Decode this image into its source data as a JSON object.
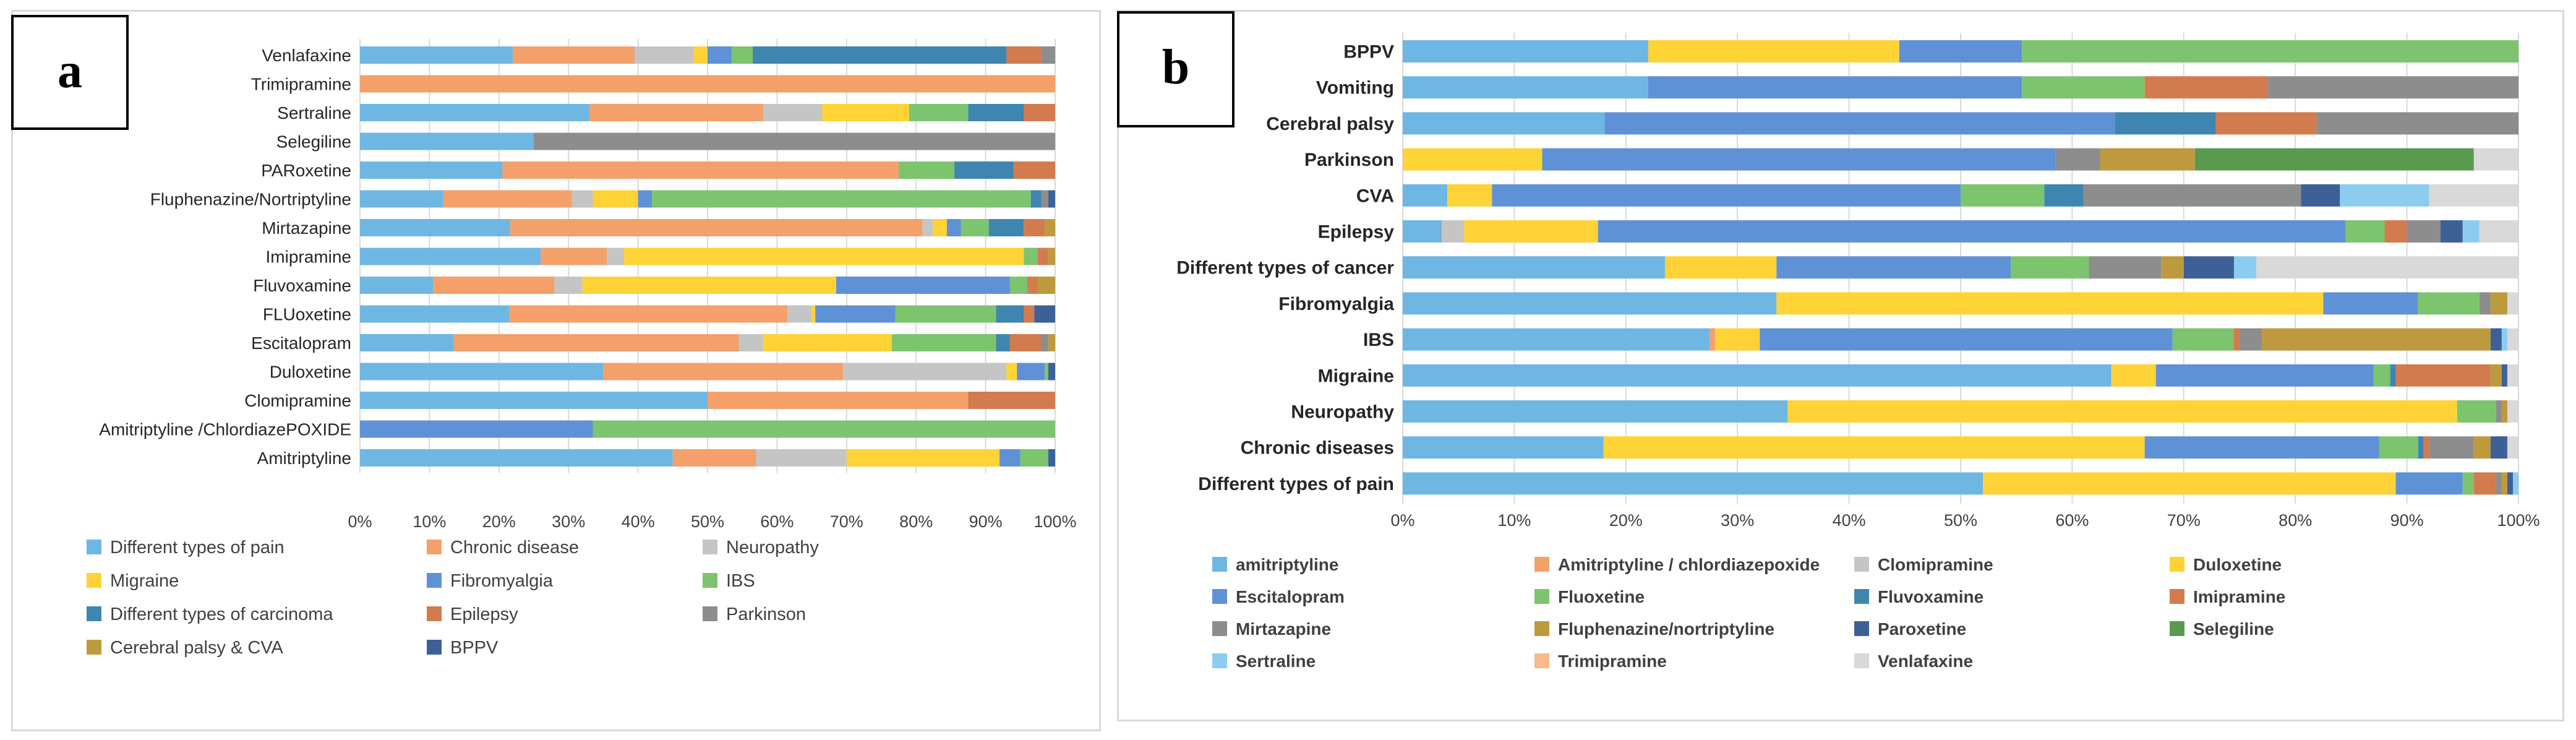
{
  "panels": {
    "a_label": "a",
    "b_label": "b"
  },
  "chart_data": [
    {
      "type": "bar",
      "orientation": "horizontal",
      "stacked": "percent",
      "panel": "a",
      "title": "",
      "xlabel": "",
      "ylabel": "",
      "xlim": [
        0,
        100
      ],
      "xticks": [
        "0%",
        "10%",
        "20%",
        "30%",
        "40%",
        "50%",
        "60%",
        "70%",
        "80%",
        "90%",
        "100%"
      ],
      "categories": [
        "Venlafaxine",
        "Trimipramine",
        "Sertraline",
        "Selegiline",
        "PARoxetine",
        "Fluphenazine/Nortriptyline",
        "Mirtazapine",
        "Imipramine",
        "Fluvoxamine",
        "FLUoxetine",
        "Escitalopram",
        "Duloxetine",
        "Clomipramine",
        "Amitriptyline /ChlordiazePOXIDE",
        "Amitriptyline"
      ],
      "legend_position": "bottom",
      "series": [
        {
          "name": "Different types of pain",
          "color": "#6fb7e3",
          "values": [
            22,
            0,
            33,
            25,
            20.5,
            12,
            21.5,
            26,
            10.5,
            21.5,
            13.5,
            35,
            50,
            0,
            45
          ]
        },
        {
          "name": "Chronic disease",
          "color": "#f4a06a",
          "values": [
            17.5,
            100,
            25,
            0,
            57,
            18.5,
            59,
            9.5,
            17.5,
            40,
            41,
            34.5,
            37.5,
            0,
            12
          ]
        },
        {
          "name": "Neuropathy",
          "color": "#c5c5c5",
          "values": [
            8.5,
            0,
            8.5,
            0,
            0,
            3,
            1.5,
            2.5,
            4,
            3.5,
            3.5,
            23.5,
            0,
            0,
            13
          ]
        },
        {
          "name": "Migraine",
          "color": "#ffd236",
          "values": [
            2,
            0,
            12.5,
            0,
            0,
            6.5,
            2,
            57.5,
            36.5,
            0.5,
            18.5,
            1.5,
            0,
            0,
            22
          ]
        },
        {
          "name": "Fibromyalgia",
          "color": "#5f91d6",
          "values": [
            3.5,
            0,
            0,
            0,
            0,
            2,
            2,
            0,
            25,
            11.5,
            0,
            4,
            0,
            33.5,
            3
          ]
        },
        {
          "name": "IBS",
          "color": "#7dc46f",
          "values": [
            3,
            0,
            8.5,
            0,
            8,
            54.5,
            4,
            2,
            2.5,
            14.5,
            15,
            0.5,
            0,
            66.5,
            4
          ]
        },
        {
          "name": "Different types of carcinoma",
          "color": "#3e86b0",
          "values": [
            36.5,
            0,
            8,
            0,
            8.5,
            1.5,
            5,
            0,
            0,
            4,
            2,
            0,
            0,
            0,
            0
          ]
        },
        {
          "name": "Epilepsy",
          "color": "#d27b4e",
          "values": [
            5,
            0,
            4.5,
            0,
            6,
            0,
            3,
            1.5,
            1.5,
            1.5,
            4.5,
            0,
            12.5,
            0,
            0
          ]
        },
        {
          "name": "Parkinson",
          "color": "#8d8d8d",
          "values": [
            2,
            0,
            0,
            75,
            0,
            1,
            0,
            0,
            0,
            0,
            1,
            0,
            0,
            0,
            0
          ]
        },
        {
          "name": "Cerebral palsy & CVA",
          "color": "#be9a3f",
          "values": [
            0,
            0,
            0,
            0,
            0,
            0,
            1.5,
            1,
            2.5,
            0,
            1,
            0,
            0,
            0,
            0
          ]
        },
        {
          "name": "BPPV",
          "color": "#3d6197",
          "values": [
            0,
            0,
            0,
            0,
            0,
            1,
            0,
            0,
            0,
            3,
            0,
            1,
            0,
            0,
            1
          ]
        }
      ]
    },
    {
      "type": "bar",
      "orientation": "horizontal",
      "stacked": "percent",
      "panel": "b",
      "title": "",
      "xlabel": "",
      "ylabel": "",
      "xlim": [
        0,
        100
      ],
      "xticks": [
        "0%",
        "10%",
        "20%",
        "30%",
        "40%",
        "50%",
        "60%",
        "70%",
        "80%",
        "90%",
        "100%"
      ],
      "categories": [
        "BPPV",
        "Vomiting",
        "Cerebral palsy",
        "Parkinson",
        "CVA",
        "Epilepsy",
        "Different types of cancer",
        "Fibromyalgia",
        "IBS",
        "Migraine",
        "Neuropathy",
        "Chronic diseases",
        "Different types of pain"
      ],
      "legend_position": "bottom",
      "series": [
        {
          "name": "amitriptyline",
          "color": "#6fb7e3",
          "values": [
            22,
            22,
            18,
            0,
            4,
            3.5,
            23.5,
            33.5,
            27.5,
            63.5,
            34.5,
            18,
            52
          ]
        },
        {
          "name": "Amitriptyline / chlordiazepoxide",
          "color": "#f4a06a",
          "values": [
            0,
            0,
            0,
            0,
            0,
            0,
            0,
            0,
            0.5,
            0,
            0,
            0,
            0
          ]
        },
        {
          "name": "Clomipramine",
          "color": "#c5c5c5",
          "values": [
            0,
            0,
            0,
            0,
            0,
            2,
            0,
            0,
            0,
            0,
            0,
            0,
            0
          ]
        },
        {
          "name": "Duloxetine",
          "color": "#ffd236",
          "values": [
            22.5,
            0,
            0,
            12.5,
            4,
            12,
            10,
            49,
            4,
            4,
            60,
            48.5,
            37
          ]
        },
        {
          "name": "Escitalopram",
          "color": "#5f91d6",
          "values": [
            11,
            33.5,
            45.5,
            46,
            42,
            67,
            21,
            8.5,
            37,
            19.5,
            0,
            21,
            6
          ]
        },
        {
          "name": "Fluoxetine",
          "color": "#7dc46f",
          "values": [
            44.5,
            11,
            0,
            0,
            7.5,
            3.5,
            7,
            5.5,
            5.5,
            1.5,
            3.5,
            3.5,
            1
          ]
        },
        {
          "name": "Fluvoxamine",
          "color": "#3e86b0",
          "values": [
            0,
            0,
            9,
            0,
            3.5,
            0,
            0,
            0,
            0,
            0.5,
            0,
            0.5,
            0
          ]
        },
        {
          "name": "Imipramine",
          "color": "#d27b4e",
          "values": [
            0,
            11,
            9,
            0,
            0,
            2,
            0,
            0,
            0.5,
            8.5,
            0,
            0.5,
            2
          ]
        },
        {
          "name": "Mirtazapine",
          "color": "#8d8d8d",
          "values": [
            0,
            22.5,
            18,
            4,
            19.5,
            3,
            6.5,
            1,
            2,
            0,
            0.5,
            4,
            0.5
          ]
        },
        {
          "name": "Fluphenazine/nortriptyline",
          "color": "#be9a3f",
          "values": [
            0,
            0,
            0,
            8.5,
            0,
            0,
            2,
            1.5,
            20.5,
            1,
            0.5,
            1.5,
            0.5
          ]
        },
        {
          "name": "Paroxetine",
          "color": "#3d6197",
          "values": [
            0,
            0,
            0,
            0,
            3.5,
            2,
            4.5,
            0,
            1,
            0.5,
            0,
            1.5,
            0.5
          ]
        },
        {
          "name": "Selegiline",
          "color": "#5a9a4f",
          "values": [
            0,
            0,
            0,
            25,
            0,
            0,
            0,
            0,
            0,
            0,
            0,
            0,
            0
          ]
        },
        {
          "name": "Sertraline",
          "color": "#8dccef",
          "values": [
            0,
            0,
            0,
            0,
            8,
            1.5,
            2,
            0,
            0.5,
            0,
            0,
            0,
            0.5
          ]
        },
        {
          "name": "Trimipramine",
          "color": "#f9b98a",
          "values": [
            0,
            0,
            0,
            0,
            0,
            0,
            0,
            0,
            0,
            0,
            0,
            0,
            0
          ]
        },
        {
          "name": "Venlafaxine",
          "color": "#d9d9d9",
          "values": [
            0,
            0,
            0,
            4,
            8,
            3.5,
            23.5,
            1,
            1,
            1,
            1,
            1,
            0
          ]
        }
      ]
    }
  ]
}
